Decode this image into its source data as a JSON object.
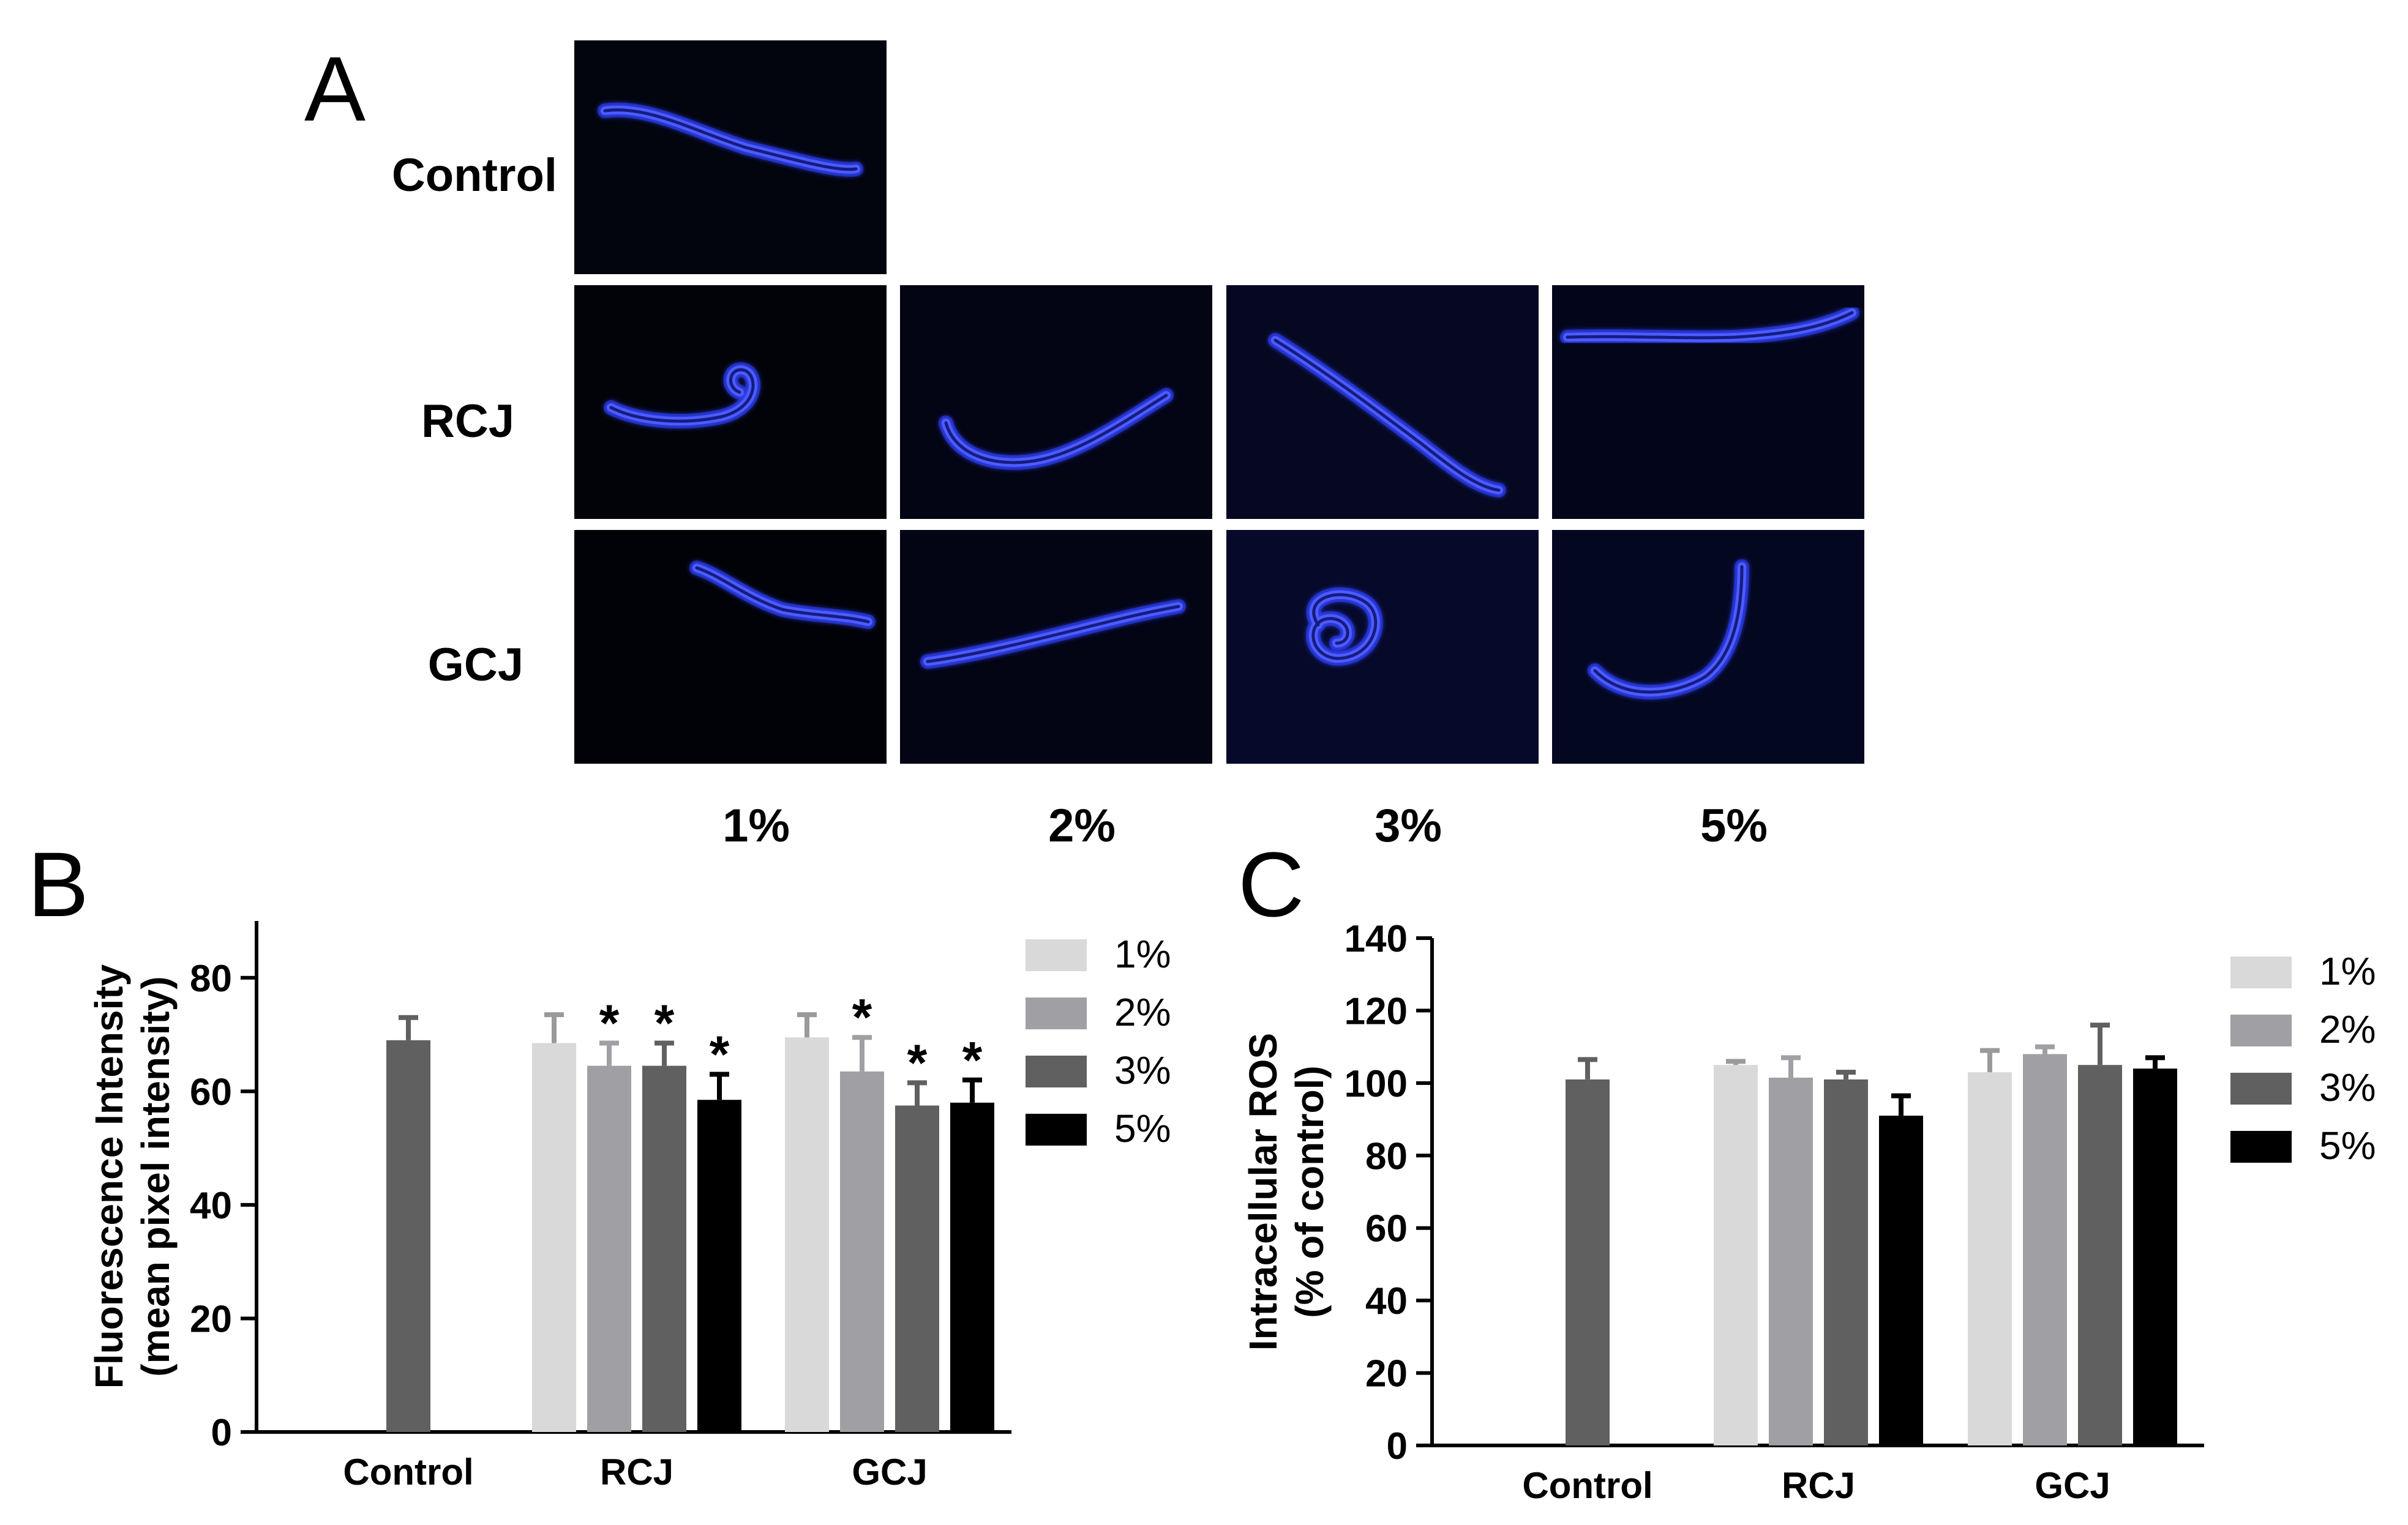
{
  "panel_labels": {
    "a": "A",
    "b": "B",
    "c": "C"
  },
  "panel_a": {
    "row_labels": [
      "Control",
      "RCJ",
      "GCJ"
    ],
    "column_labels": [
      "1%",
      "2%",
      "3%",
      "5%"
    ],
    "images": [
      {
        "row": "Control",
        "col": "1%",
        "shape": "worm-diagonal",
        "bg": "#02040e"
      },
      {
        "row": "RCJ",
        "col": "1%",
        "shape": "worm-curled-end",
        "bg": "#020309"
      },
      {
        "row": "RCJ",
        "col": "2%",
        "shape": "worm-crescent",
        "bg": "#030414"
      },
      {
        "row": "RCJ",
        "col": "3%",
        "shape": "worm-diagonal-down",
        "bg": "#050820"
      },
      {
        "row": "RCJ",
        "col": "5%",
        "shape": "worm-horizontal",
        "bg": "#03061a"
      },
      {
        "row": "GCJ",
        "col": "1%",
        "shape": "worm-short-diagonal",
        "bg": "#010207"
      },
      {
        "row": "GCJ",
        "col": "2%",
        "shape": "worm-rising",
        "bg": "#030414"
      },
      {
        "row": "GCJ",
        "col": "3%",
        "shape": "worm-coiled",
        "bg": "#06092a"
      },
      {
        "row": "GCJ",
        "col": "5%",
        "shape": "worm-hook",
        "bg": "#040720"
      }
    ],
    "worm_color": "#2a3cff"
  },
  "chart_data": [
    {
      "type": "bar",
      "panel": "B",
      "ylabel": [
        "Fluorescence Intensity",
        "(mean pixel intensity)"
      ],
      "categories": [
        "Control",
        "RCJ",
        "GCJ"
      ],
      "ylim": [
        0,
        90
      ],
      "yticks": [
        0,
        20,
        40,
        60,
        80
      ],
      "legend": {
        "placement": "right",
        "entries": [
          "1%",
          "2%",
          "3%",
          "5%"
        ]
      },
      "series": [
        {
          "name": "1%",
          "color": "#d9d9d9",
          "values": [
            null,
            68.5,
            69.5
          ],
          "errors": [
            null,
            5,
            4
          ],
          "significant": [
            false,
            false,
            false
          ]
        },
        {
          "name": "2%",
          "color": "#a0a0a4",
          "values": [
            null,
            64.5,
            63.5
          ],
          "errors": [
            null,
            4,
            6
          ],
          "significant": [
            false,
            true,
            true
          ]
        },
        {
          "name": "3%",
          "color": "#606060",
          "values": [
            69,
            64.5,
            57.5
          ],
          "errors": [
            4,
            4,
            4
          ],
          "significant": [
            false,
            true,
            true
          ]
        },
        {
          "name": "5%",
          "color": "#000000",
          "values": [
            null,
            58.5,
            58
          ],
          "errors": [
            null,
            4.5,
            4
          ],
          "significant": [
            false,
            true,
            true
          ]
        }
      ],
      "significance_marker": "*"
    },
    {
      "type": "bar",
      "panel": "C",
      "ylabel": [
        "Intracellular ROS",
        "(% of control)"
      ],
      "categories": [
        "Control",
        "RCJ",
        "GCJ"
      ],
      "ylim": [
        0,
        140
      ],
      "yticks": [
        0,
        20,
        40,
        60,
        80,
        100,
        120,
        140
      ],
      "legend": {
        "placement": "right",
        "entries": [
          "1%",
          "2%",
          "3%",
          "5%"
        ]
      },
      "series": [
        {
          "name": "1%",
          "color": "#d9d9d9",
          "values": [
            null,
            105,
            103
          ],
          "errors": [
            null,
            1,
            6
          ]
        },
        {
          "name": "2%",
          "color": "#a0a0a4",
          "values": [
            null,
            101.5,
            108
          ],
          "errors": [
            null,
            5.5,
            2
          ]
        },
        {
          "name": "3%",
          "color": "#606060",
          "values": [
            101,
            101,
            105
          ],
          "errors": [
            5.5,
            2,
            11
          ]
        },
        {
          "name": "5%",
          "color": "#000000",
          "values": [
            null,
            91,
            104
          ],
          "errors": [
            null,
            5.5,
            3
          ]
        }
      ]
    }
  ]
}
